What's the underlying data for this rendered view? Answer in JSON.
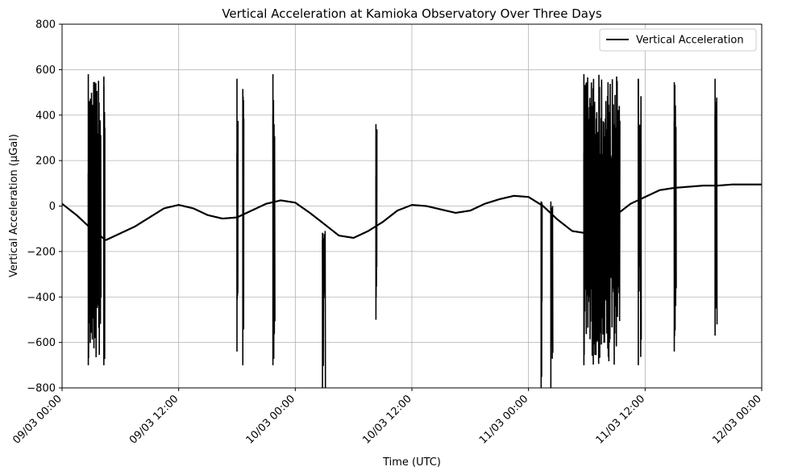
{
  "chart_data": {
    "type": "line",
    "title": "Vertical Acceleration at Kamioka Observatory Over Three Days",
    "xlabel": "Time (UTC)",
    "ylabel": "Vertical Acceleration (μGal)",
    "x_range": [
      "2025-03-09T00:00",
      "2025-03-12T00:00"
    ],
    "ylim": [
      -800,
      800
    ],
    "y_ticks": [
      -800,
      -600,
      -400,
      -200,
      0,
      200,
      400,
      600,
      800
    ],
    "y_tick_labels": [
      "−800",
      "−600",
      "−400",
      "−200",
      "0",
      "200",
      "400",
      "600",
      "800"
    ],
    "x_ticks": [
      "09/03 00:00",
      "09/03 12:00",
      "10/03 00:00",
      "10/03 12:00",
      "11/03 00:00",
      "11/03 12:00",
      "12/03 00:00"
    ],
    "x_tick_hours": [
      0,
      12,
      24,
      36,
      48,
      60,
      72
    ],
    "grid": true,
    "legend_position": "top-right",
    "series": [
      {
        "name": "Vertical Acceleration",
        "color": "#000000",
        "baseline": {
          "hours": [
            0,
            1.5,
            3,
            4.5,
            6,
            7.5,
            9,
            10.5,
            12,
            13.5,
            15,
            16.5,
            18,
            19.5,
            21,
            22.5,
            24,
            25.5,
            27,
            28.5,
            30,
            31.5,
            33,
            34.5,
            36,
            37.5,
            39,
            40.5,
            42,
            43.5,
            45,
            46.5,
            48,
            49.5,
            51,
            52.5,
            54,
            55.5,
            57,
            58.5,
            60,
            61.5,
            63,
            64.5,
            66,
            67.5,
            69,
            70.5,
            72
          ],
          "values": [
            10,
            -40,
            -100,
            -150,
            -120,
            -90,
            -50,
            -10,
            5,
            -10,
            -40,
            -55,
            -50,
            -20,
            10,
            25,
            15,
            -30,
            -80,
            -130,
            -140,
            -110,
            -70,
            -20,
            5,
            0,
            -15,
            -30,
            -20,
            10,
            30,
            45,
            40,
            0,
            -60,
            -110,
            -120,
            -90,
            -40,
            10,
            40,
            70,
            80,
            85,
            90,
            90,
            95,
            95,
            95
          ]
        },
        "bursts": [
          {
            "start_hour": 2.7,
            "end_hour": 4.0,
            "min": -700,
            "max": 580
          },
          {
            "start_hour": 4.3,
            "end_hour": 4.4,
            "min": -700,
            "max": 570
          },
          {
            "start_hour": 18.0,
            "end_hour": 18.1,
            "min": -640,
            "max": 560
          },
          {
            "start_hour": 18.6,
            "end_hour": 18.7,
            "min": -700,
            "max": 515
          },
          {
            "start_hour": 21.7,
            "end_hour": 21.9,
            "min": -700,
            "max": 580
          },
          {
            "start_hour": 26.8,
            "end_hour": 27.1,
            "min": -800,
            "max": -150
          },
          {
            "start_hour": 32.3,
            "end_hour": 32.4,
            "min": -500,
            "max": 360
          },
          {
            "start_hour": 49.3,
            "end_hour": 49.4,
            "min": -800,
            "max": 20
          },
          {
            "start_hour": 50.3,
            "end_hour": 50.5,
            "min": -800,
            "max": 20
          },
          {
            "start_hour": 53.7,
            "end_hour": 57.4,
            "min": -700,
            "max": 580
          },
          {
            "start_hour": 59.3,
            "end_hour": 59.6,
            "min": -700,
            "max": 560
          },
          {
            "start_hour": 63.0,
            "end_hour": 63.2,
            "min": -640,
            "max": 545
          },
          {
            "start_hour": 67.2,
            "end_hour": 67.4,
            "min": -570,
            "max": 560
          }
        ]
      }
    ]
  }
}
